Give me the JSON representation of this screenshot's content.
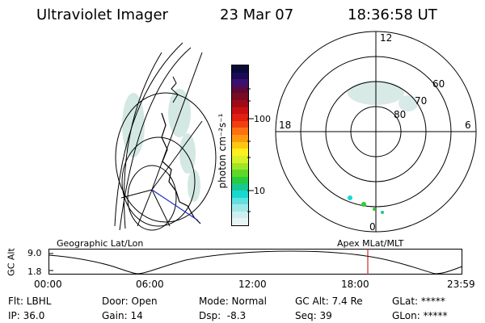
{
  "header": {
    "title": "Ultraviolet Imager",
    "date": "23 Mar 07",
    "time": "18:36:58 UT"
  },
  "colorbar": {
    "unit_label": "photon cm⁻²s⁻¹",
    "ticks": [
      "100",
      "10"
    ],
    "colors": [
      "#0a0a3a",
      "#1a0a55",
      "#3a1070",
      "#5a0a3a",
      "#7a0a20",
      "#a00a18",
      "#c81010",
      "#e02010",
      "#f04010",
      "#ff7010",
      "#ff9a10",
      "#ffc810",
      "#ffee20",
      "#d8f028",
      "#a0e628",
      "#5ed828",
      "#2acc3a",
      "#18c890",
      "#18d8d0",
      "#60e0e0",
      "#a0e8e8",
      "#cfeeee",
      "#e6f4f4"
    ]
  },
  "polar_plot": {
    "lat_labels": [
      "80",
      "70",
      "60"
    ],
    "mlt_labels": {
      "top": "12",
      "left": "18",
      "right": "6",
      "bottom": "0"
    }
  },
  "altitude_panel": {
    "y_axis_label": "GC Alt",
    "y_ticks": [
      "9.0",
      "1.8"
    ],
    "left_title": "Geographic Lat/Lon",
    "right_title": "Apex MLat/MLT",
    "x_ticks": [
      "00:00",
      "06:00",
      "12:00",
      "18:00",
      "23:59"
    ]
  },
  "info": {
    "flt": "Flt: LBHL",
    "ip": "IP: 36.0",
    "door": "Door: Open",
    "gain": "Gain: 14",
    "mode": "Mode: Normal",
    "dsp": "Dsp:  -8.3",
    "gc_alt": "GC Alt: 7.4 Re",
    "seq": "Seq: 39",
    "glat": "GLat: *****",
    "glon": "GLon: *****"
  }
}
